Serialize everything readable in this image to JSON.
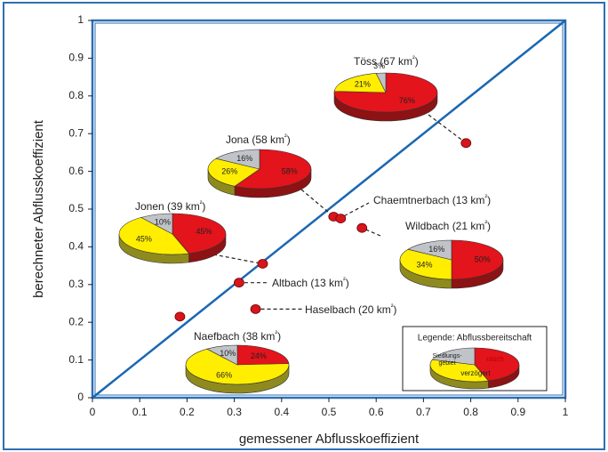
{
  "colors": {
    "frame": "#2f6fb3",
    "diagonal": "#1a67b2",
    "fast": "#e3141b",
    "delayed": "#ffee00",
    "settlement": "#c0c3c8",
    "point": "#d7151b",
    "pie_side_yellow": "#8f8a1e",
    "pie_side_red": "#8d1214"
  },
  "chart_data": {
    "type": "scatter",
    "xlabel": "gemessener Abflusskoeffizient",
    "ylabel": "berechneter Abflusskoeffizient",
    "xlim": [
      0,
      1
    ],
    "ylim": [
      0,
      1
    ],
    "x_ticks": [
      "0",
      "0.1",
      "0.2",
      "0.3",
      "0.4",
      "0.5",
      "0.6",
      "0.7",
      "0.8",
      "0.9",
      "1"
    ],
    "y_ticks": [
      "0",
      "0.1",
      "0.2",
      "0.3",
      "0.4",
      "0.5",
      "0.6",
      "0.7",
      "0.8",
      "0.9",
      "1"
    ],
    "grid": false,
    "reference_line": {
      "from": [
        0,
        0
      ],
      "to": [
        1,
        1
      ]
    },
    "points": [
      {
        "name": "Töss",
        "area": "(67 km²)",
        "x": 0.79,
        "y": 0.675
      },
      {
        "name": "Jona",
        "area": "(58 km²)",
        "x": 0.51,
        "y": 0.48
      },
      {
        "name": "Chaemtnerbach",
        "area": "(13 km²)",
        "x": 0.525,
        "y": 0.475
      },
      {
        "name": "Wildbach",
        "area": "(21 km²)",
        "x": 0.57,
        "y": 0.45
      },
      {
        "name": "Jonen",
        "area": "(39 km²)",
        "x": 0.36,
        "y": 0.355
      },
      {
        "name": "Altbach",
        "area": "(13 km²)",
        "x": 0.31,
        "y": 0.305
      },
      {
        "name": "Haselbach",
        "area": "(20 km²)",
        "x": 0.345,
        "y": 0.235
      },
      {
        "name": "Naefbach",
        "area": "(38 km²)",
        "x": 0.185,
        "y": 0.215
      }
    ],
    "pies": [
      {
        "catchment": "Töss",
        "fast": 76,
        "delayed": 21,
        "settlement": 3,
        "labels": {
          "fast": "76%",
          "delayed": "21%",
          "settlement": "3%"
        }
      },
      {
        "catchment": "Jona",
        "fast": 58,
        "delayed": 26,
        "settlement": 16,
        "labels": {
          "fast": "58%",
          "delayed": "26%",
          "settlement": "16%"
        }
      },
      {
        "catchment": "Jonen",
        "fast": 45,
        "delayed": 45,
        "settlement": 10,
        "labels": {
          "fast": "45%",
          "delayed": "45%",
          "settlement": "10%"
        }
      },
      {
        "catchment": "Wildbach",
        "fast": 50,
        "delayed": 34,
        "settlement": 16,
        "labels": {
          "fast": "50%",
          "delayed": "34%",
          "settlement": "16%"
        }
      },
      {
        "catchment": "Naefbach",
        "fast": 24,
        "delayed": 66,
        "settlement": 10,
        "labels": {
          "fast": "24%",
          "delayed": "66%",
          "settlement": "10%"
        }
      }
    ],
    "legend": {
      "title": "Legende: Abflussbereitschaft",
      "placement": "bottom-right",
      "fast": 45,
      "delayed": 35,
      "settlement": 20,
      "fast_label": "rasch",
      "delayed_label": "verzögert",
      "settlement_label_line1": "Siedlungs-",
      "settlement_label_line2": "gebiet"
    }
  }
}
